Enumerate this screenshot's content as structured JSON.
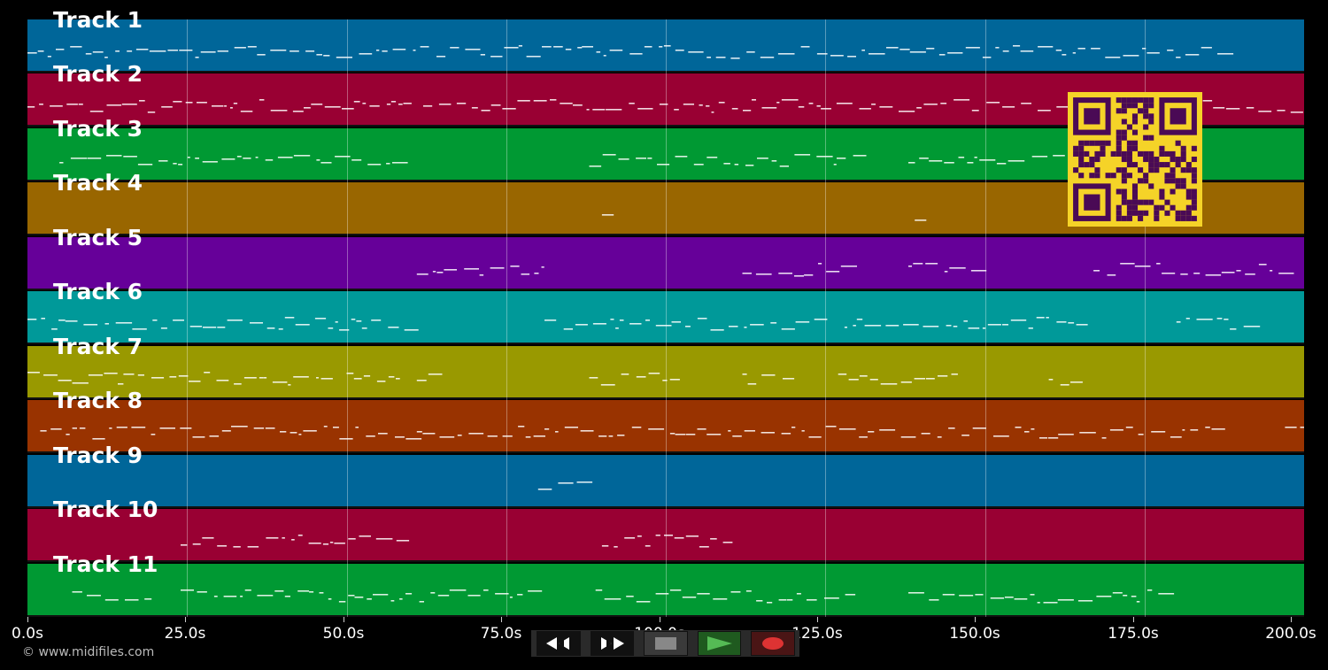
{
  "duration": 200,
  "tracks": [
    {
      "name": "Track 1",
      "color": "#006699"
    },
    {
      "name": "Track 2",
      "color": "#990033"
    },
    {
      "name": "Track 3",
      "color": "#009933"
    },
    {
      "name": "Track 4",
      "color": "#996600"
    },
    {
      "name": "Track 5",
      "color": "#660099"
    },
    {
      "name": "Track 6",
      "color": "#009999"
    },
    {
      "name": "Track 7",
      "color": "#999900"
    },
    {
      "name": "Track 8",
      "color": "#993300"
    },
    {
      "name": "Track 9",
      "color": "#006699"
    },
    {
      "name": "Track 10",
      "color": "#990033"
    },
    {
      "name": "Track 11",
      "color": "#009933"
    }
  ],
  "axis": {
    "ticks": [
      "0.0s",
      "25.0s",
      "50.0s",
      "75.0s",
      "100.0s",
      "125.0s",
      "150.0s",
      "175.0s",
      "200.0s"
    ]
  },
  "copyright": "© www.midifiles.com",
  "transport": {
    "buttons": [
      {
        "icon": "rewind-icon",
        "label": "rewind"
      },
      {
        "icon": "fast-forward-icon",
        "label": "fast-forward"
      },
      {
        "icon": "stop-icon",
        "label": "stop",
        "color": "#888888"
      },
      {
        "icon": "play-icon",
        "label": "play",
        "color": "#55bb55"
      },
      {
        "icon": "record-icon",
        "label": "record",
        "color": "#dd3333"
      }
    ]
  },
  "qr": {
    "fg": "#4a0a55",
    "bg": "#f5d328"
  }
}
